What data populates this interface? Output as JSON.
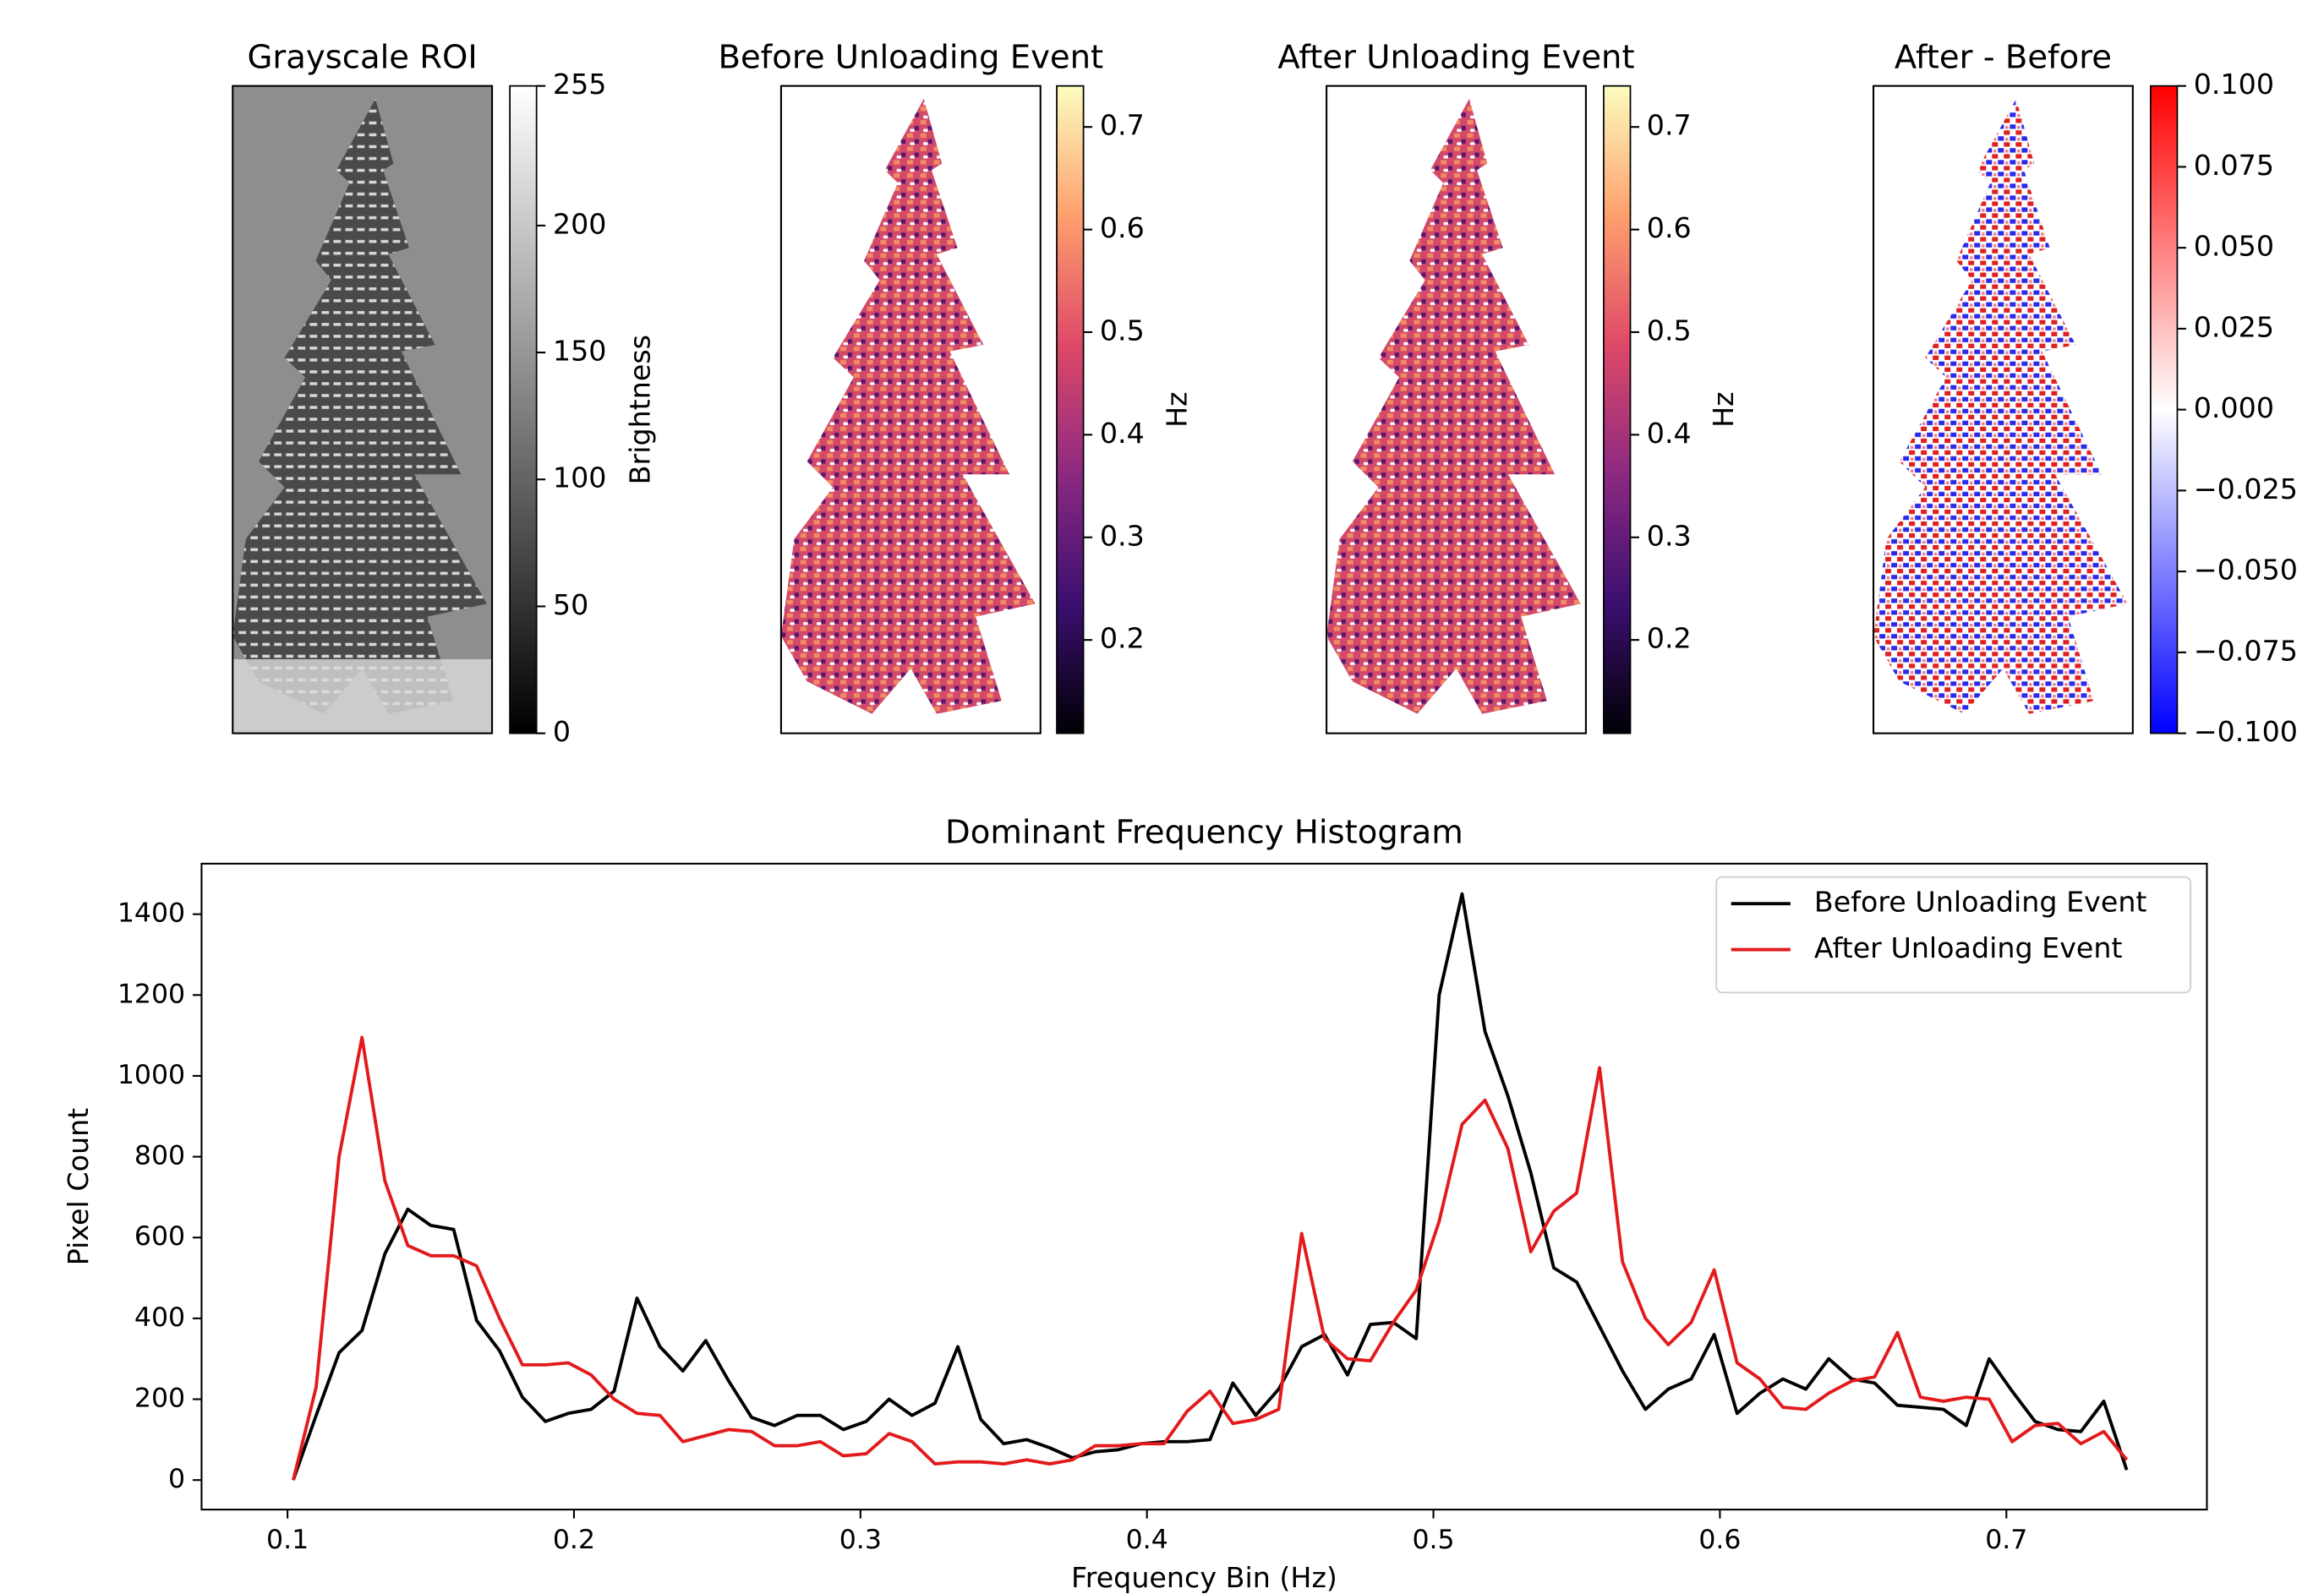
{
  "chart_data": [
    {
      "type": "image",
      "title": "Grayscale ROI",
      "colormap": "gray",
      "colorbar": {
        "label": "Brightness",
        "lim": [
          0,
          255
        ],
        "ticks": [
          0,
          50,
          100,
          150,
          200,
          255
        ]
      }
    },
    {
      "type": "image",
      "title": "Before Unloading Event",
      "colormap": "magma",
      "colorbar": {
        "label": "Hz",
        "lim": [
          0.109,
          0.74
        ],
        "ticks": [
          0.2,
          0.3,
          0.4,
          0.5,
          0.6,
          0.7
        ]
      }
    },
    {
      "type": "image",
      "title": "After Unloading Event",
      "colormap": "magma",
      "colorbar": {
        "label": "Hz",
        "lim": [
          0.109,
          0.74
        ],
        "ticks": [
          0.2,
          0.3,
          0.4,
          0.5,
          0.6,
          0.7
        ]
      }
    },
    {
      "type": "image",
      "title": "After - Before",
      "colormap": "bwr",
      "colorbar": {
        "lim": [
          -0.1,
          0.1
        ],
        "ticks": [
          {
            "value": -0.1,
            "label": "−0.100"
          },
          {
            "value": -0.075,
            "label": "−0.075"
          },
          {
            "value": -0.05,
            "label": "−0.050"
          },
          {
            "value": -0.025,
            "label": "−0.025"
          },
          {
            "value": 0,
            "label": "0.000"
          },
          {
            "value": 0.025,
            "label": "0.025"
          },
          {
            "value": 0.05,
            "label": "0.050"
          },
          {
            "value": 0.075,
            "label": "0.075"
          },
          {
            "value": 0.1,
            "label": "0.100"
          }
        ]
      }
    },
    {
      "type": "line",
      "title": "Dominant Frequency Histogram",
      "x_label": "Frequency Bin (Hz)",
      "y_label": "Pixel Count",
      "x": [
        0.102,
        0.11,
        0.118,
        0.126,
        0.134,
        0.142,
        0.15,
        0.158,
        0.166,
        0.174,
        0.182,
        0.19,
        0.198,
        0.206,
        0.214,
        0.222,
        0.23,
        0.238,
        0.246,
        0.254,
        0.262,
        0.27,
        0.278,
        0.286,
        0.294,
        0.302,
        0.31,
        0.318,
        0.326,
        0.334,
        0.342,
        0.35,
        0.358,
        0.366,
        0.374,
        0.382,
        0.39,
        0.398,
        0.406,
        0.414,
        0.422,
        0.43,
        0.438,
        0.446,
        0.454,
        0.462,
        0.47,
        0.478,
        0.486,
        0.494,
        0.502,
        0.51,
        0.518,
        0.526,
        0.534,
        0.542,
        0.55,
        0.558,
        0.566,
        0.574,
        0.582,
        0.59,
        0.598,
        0.606,
        0.614,
        0.622,
        0.63,
        0.638,
        0.646,
        0.654,
        0.662,
        0.67,
        0.678,
        0.686,
        0.694,
        0.702,
        0.71,
        0.718,
        0.726,
        0.734,
        0.742
      ],
      "series": [
        {
          "name": "Before Unloading Event",
          "color": "#000000",
          "values": [
            0,
            160,
            315,
            370,
            560,
            670,
            630,
            620,
            395,
            320,
            205,
            145,
            165,
            175,
            220,
            450,
            330,
            270,
            345,
            245,
            155,
            135,
            160,
            160,
            125,
            145,
            200,
            160,
            190,
            330,
            150,
            90,
            100,
            80,
            55,
            70,
            75,
            90,
            95,
            95,
            100,
            240,
            160,
            225,
            330,
            360,
            260,
            385,
            390,
            350,
            1200,
            1450,
            1110,
            950,
            760,
            525,
            490,
            380,
            270,
            175,
            225,
            250,
            360,
            165,
            215,
            250,
            225,
            300,
            250,
            240,
            185,
            180,
            175,
            135,
            300,
            220,
            145,
            125,
            120,
            195,
            25
          ]
        },
        {
          "name": "After Unloading Event",
          "color": "#e31a1c",
          "values": [
            0,
            230,
            800,
            1095,
            740,
            580,
            555,
            555,
            530,
            400,
            285,
            285,
            290,
            260,
            200,
            165,
            160,
            95,
            110,
            125,
            120,
            85,
            85,
            95,
            60,
            65,
            115,
            95,
            40,
            45,
            45,
            40,
            50,
            40,
            50,
            85,
            85,
            90,
            90,
            170,
            220,
            140,
            150,
            175,
            610,
            350,
            300,
            295,
            390,
            470,
            640,
            880,
            940,
            820,
            565,
            665,
            710,
            1020,
            540,
            400,
            335,
            390,
            520,
            290,
            250,
            180,
            175,
            215,
            245,
            255,
            365,
            205,
            195,
            205,
            200,
            95,
            135,
            140,
            90,
            120,
            50
          ]
        }
      ],
      "xlim": [
        0.07,
        0.77
      ],
      "xticks": [
        0.1,
        0.2,
        0.3,
        0.4,
        0.5,
        0.6,
        0.7
      ],
      "ylim": [
        -73,
        1525
      ],
      "yticks": [
        0,
        200,
        400,
        600,
        800,
        1000,
        1200,
        1400
      ],
      "legend": "upper right"
    }
  ]
}
